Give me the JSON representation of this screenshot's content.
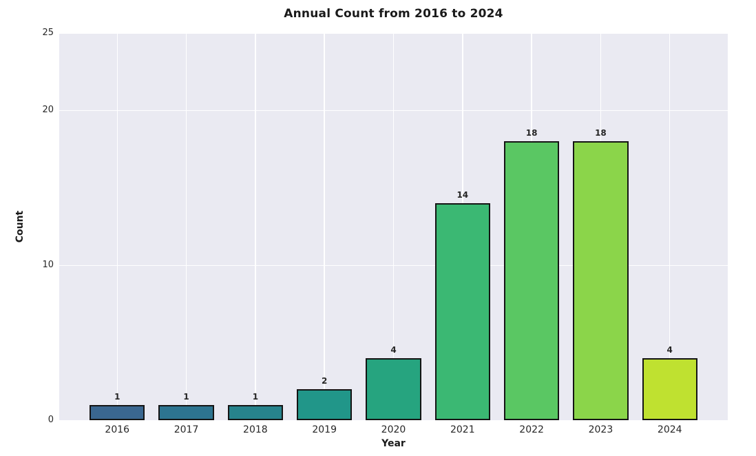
{
  "chart_data": {
    "type": "bar",
    "title": "Annual Count from 2016 to 2024",
    "xlabel": "Year",
    "ylabel": "Count",
    "categories": [
      "2016",
      "2017",
      "2018",
      "2019",
      "2020",
      "2021",
      "2022",
      "2023",
      "2024"
    ],
    "values": [
      1,
      1,
      1,
      2,
      4,
      14,
      18,
      18,
      4
    ],
    "bar_labels": [
      "1",
      "1",
      "1",
      "2",
      "4",
      "14",
      "18",
      "18",
      "4"
    ],
    "bar_colors": [
      "#3a6790",
      "#2d7490",
      "#27838c",
      "#219689",
      "#26a47f",
      "#3bb873",
      "#5ac763",
      "#8bd54a",
      "#bfe130"
    ],
    "bar_edge_color": "#141414",
    "ylim": [
      0,
      25
    ],
    "yticks": [
      0,
      10,
      20,
      25
    ],
    "grid": true,
    "legend_position": "none",
    "plot_bg_color": "#eaeaf2",
    "grid_color": "#ffffff",
    "text_color": "#262626"
  }
}
